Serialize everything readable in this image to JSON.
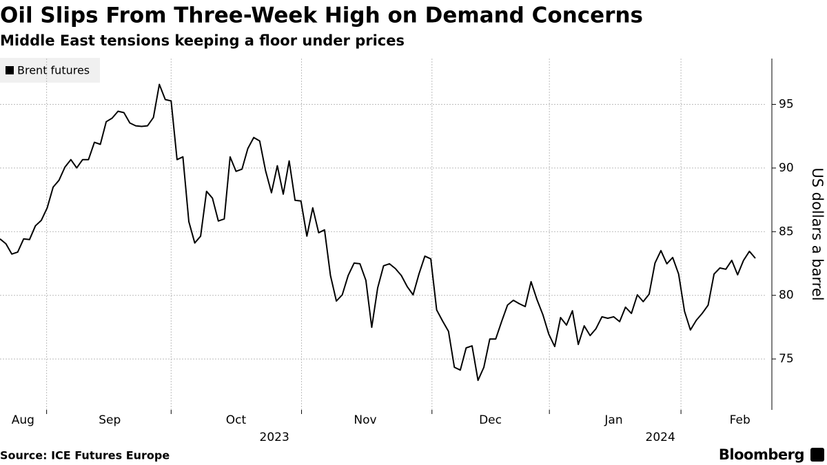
{
  "chart_data": {
    "type": "line",
    "title": "Oil Slips From Three-Week High on Demand Concerns",
    "subtitle": "Middle East tensions keeping a floor under prices",
    "y_axis_label": "US dollars a barrel",
    "source": "Source: ICE Futures Europe",
    "brand": "Bloomberg",
    "legend_position": "top-left",
    "grid": true,
    "series": [
      {
        "name": "Brent futures",
        "color": "#000000",
        "values": [
          84.43,
          84.05,
          83.24,
          83.4,
          84.43,
          84.38,
          85.46,
          85.89,
          86.87,
          88.5,
          89.04,
          90.07,
          90.66,
          90.01,
          90.66,
          90.66,
          92.02,
          91.86,
          93.64,
          93.92,
          94.46,
          94.35,
          93.54,
          93.32,
          93.27,
          93.32,
          93.97,
          96.57,
          95.38,
          95.27,
          90.66,
          90.88,
          85.79,
          84.11,
          84.65,
          88.17,
          87.63,
          85.84,
          86.0,
          90.88,
          89.74,
          89.91,
          91.53,
          92.4,
          92.13,
          89.8,
          88.06,
          90.18,
          87.95,
          90.56,
          87.47,
          87.41,
          84.65,
          86.87,
          84.92,
          85.14,
          81.56,
          79.55,
          80.04,
          81.56,
          82.53,
          82.48,
          81.18,
          77.49,
          80.58,
          82.32,
          82.48,
          82.1,
          81.56,
          80.69,
          80.04,
          81.67,
          83.08,
          82.86,
          78.85,
          77.98,
          77.17,
          74.35,
          74.13,
          75.87,
          76.03,
          73.32,
          74.35,
          76.57,
          76.57,
          77.93,
          79.23,
          79.61,
          79.34,
          79.12,
          81.07,
          79.66,
          78.47,
          76.95,
          75.98,
          78.25,
          77.66,
          78.79,
          76.14,
          77.6,
          76.84,
          77.38,
          78.31,
          78.2,
          78.31,
          77.93,
          79.07,
          78.58,
          80.04,
          79.5,
          80.09,
          82.53,
          83.51,
          82.48,
          82.97,
          81.67,
          78.74,
          77.28,
          78.04,
          78.58,
          79.23,
          81.67,
          82.15,
          82.05,
          82.75,
          81.61,
          82.75,
          83.46,
          82.91
        ]
      }
    ],
    "xlim": [
      0,
      128
    ],
    "x_grid": [
      7.9,
      29.0,
      51.1,
      73.2,
      93.1,
      115.4
    ],
    "xticks": [
      {
        "value": 3.9,
        "label": "Aug"
      },
      {
        "value": 18.6,
        "label": "Sep"
      },
      {
        "value": 40.0,
        "label": "Oct"
      },
      {
        "value": 61.9,
        "label": "Nov"
      },
      {
        "value": 83.1,
        "label": "Dec"
      },
      {
        "value": 104.0,
        "label": "Jan"
      },
      {
        "value": 125.4,
        "label": "Feb"
      }
    ],
    "year_ticks": [
      {
        "value": 46.5,
        "label": "2023"
      },
      {
        "value": 111.9,
        "label": "2024"
      }
    ],
    "ylim": [
      71,
      98.6
    ],
    "yticks": [
      75,
      80,
      85,
      90,
      95
    ]
  }
}
